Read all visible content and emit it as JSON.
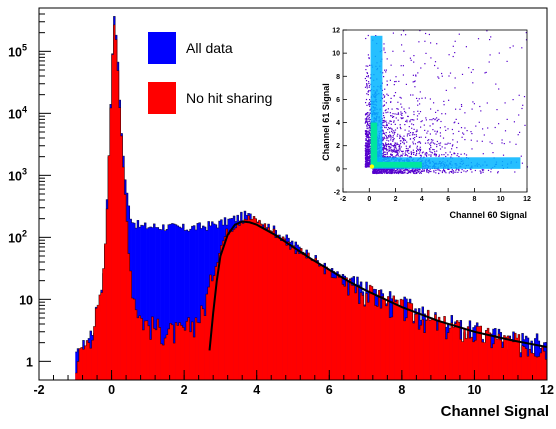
{
  "chart_data": [
    {
      "type": "bar",
      "title": "",
      "xlabel": "Channel Signal",
      "ylabel": "",
      "xlim": [
        -2,
        12
      ],
      "ylim": [
        0.5,
        500000
      ],
      "log_y": true,
      "x_ticks": [
        "-2",
        "0",
        "2",
        "4",
        "6",
        "8",
        "10",
        "12"
      ],
      "y_ticks": [
        {
          "value": 1,
          "label": "1"
        },
        {
          "value": 10,
          "label": "10"
        },
        {
          "value": 100,
          "label": "10",
          "exp": "2"
        },
        {
          "value": 1000,
          "label": "10",
          "exp": "3"
        },
        {
          "value": 10000,
          "label": "10",
          "exp": "4"
        },
        {
          "value": 100000,
          "label": "10",
          "exp": "5"
        }
      ],
      "legend": {
        "placement": "top-center",
        "entries": [
          {
            "label": "All data",
            "color": "#0000ff"
          },
          {
            "label": "No hit sharing",
            "color": "#ff0000"
          }
        ]
      },
      "series": [
        {
          "name": "All data",
          "color": "#0000ff",
          "x": [
            -1.0,
            -0.8,
            -0.6,
            -0.4,
            -0.3,
            -0.2,
            -0.1,
            0.0,
            0.05,
            0.1,
            0.15,
            0.2,
            0.3,
            0.4,
            0.5,
            0.6,
            0.8,
            1.0,
            1.5,
            2.0,
            2.5,
            3.0,
            3.5,
            3.7,
            4.0,
            4.5,
            5.0,
            5.5,
            6.0,
            6.5,
            7.0,
            8.0,
            9.0,
            10.0,
            11.0,
            11.9
          ],
          "values": [
            1,
            1.5,
            2.5,
            6,
            10,
            40,
            800,
            40000,
            300000,
            350000,
            120000,
            30000,
            3000,
            600,
            250,
            180,
            150,
            150,
            150,
            140,
            150,
            170,
            210,
            230,
            200,
            130,
            80,
            50,
            30,
            20,
            14,
            8,
            4.5,
            3,
            2.2,
            2
          ]
        },
        {
          "name": "No hit sharing",
          "color": "#ff0000",
          "x": [
            -1.0,
            -0.8,
            -0.6,
            -0.4,
            -0.3,
            -0.2,
            -0.1,
            0.0,
            0.05,
            0.1,
            0.15,
            0.2,
            0.3,
            0.4,
            0.5,
            0.6,
            0.8,
            1.0,
            1.5,
            2.0,
            2.5,
            2.8,
            3.0,
            3.2,
            3.5,
            3.7,
            4.0,
            4.5,
            5.0,
            5.5,
            6.0,
            6.5,
            7.0,
            8.0,
            9.0,
            10.0,
            11.0,
            11.9
          ],
          "values": [
            1,
            1.5,
            2.5,
            6,
            10,
            40,
            700,
            35000,
            280000,
            320000,
            110000,
            25000,
            2000,
            300,
            40,
            12,
            5,
            4,
            3,
            3,
            6,
            25,
            70,
            130,
            180,
            210,
            190,
            120,
            70,
            45,
            27,
            18,
            13,
            7,
            4,
            2.8,
            2,
            1.8
          ]
        },
        {
          "name": "",
          "role": "fit",
          "color": "#000000",
          "x": [
            2.7,
            2.8,
            2.9,
            3.0,
            3.2,
            3.4,
            3.6,
            3.8,
            4.0,
            4.5,
            5.0,
            5.5,
            6.0,
            6.5,
            7.0,
            8.0,
            9.0,
            10.0,
            11.0,
            12.0
          ],
          "values": [
            1.5,
            6,
            20,
            50,
            110,
            160,
            180,
            175,
            160,
            110,
            70,
            45,
            30,
            20,
            14,
            7.5,
            4.5,
            3,
            2.2,
            1.7
          ]
        }
      ]
    },
    {
      "type": "scatter",
      "title": "",
      "xlabel": "Channel 60 Signal",
      "ylabel": "Channel 61 Signal",
      "xlim": [
        -2,
        12
      ],
      "ylim": [
        -2,
        12
      ],
      "x_ticks": [
        "-2",
        "0",
        "2",
        "4",
        "6",
        "8",
        "10",
        "12"
      ],
      "y_ticks": [
        "-2",
        "0",
        "2",
        "4",
        "6",
        "8",
        "10",
        "12"
      ],
      "point_color": "#5500cc",
      "core_colors": [
        "#00b4ff",
        "#00e6a0",
        "#ffff00"
      ]
    }
  ]
}
